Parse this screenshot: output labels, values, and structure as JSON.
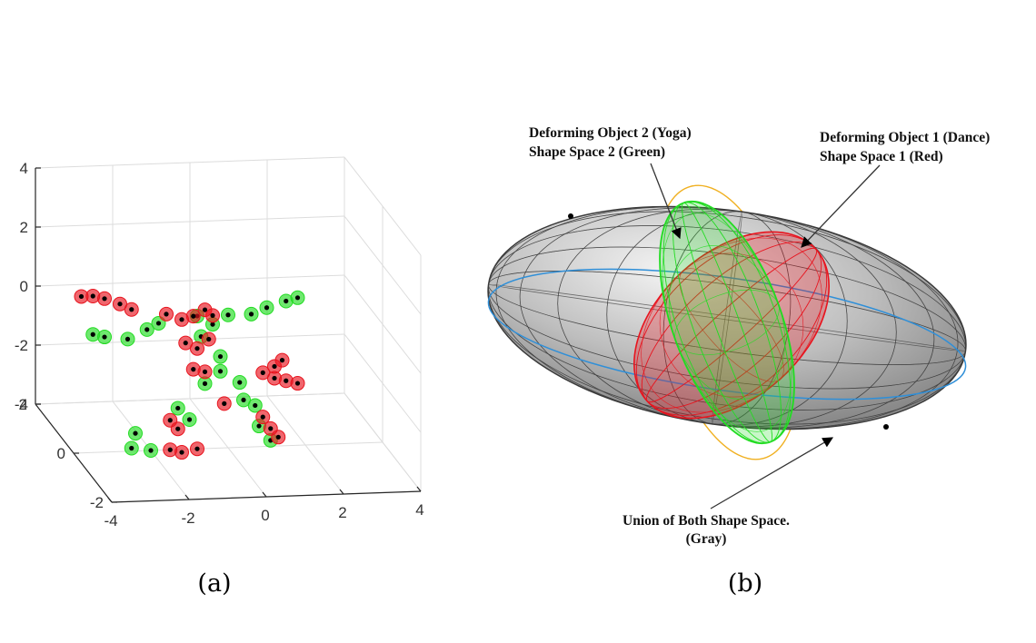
{
  "figure": {
    "captions": [
      "(a)",
      "(b)"
    ]
  },
  "chart_data": [
    {
      "type": "scatter",
      "panel": "(a)",
      "projection": "3d",
      "grid": true,
      "title": "",
      "xlabel": "",
      "ylabel": "",
      "zlabel": "",
      "xlim": [
        -4,
        4
      ],
      "ylim": [
        -2,
        2
      ],
      "zlim": [
        -4,
        4
      ],
      "x_ticks": [
        "-4",
        "-2",
        "0",
        "2",
        "4"
      ],
      "y_ticks": [
        "-2",
        "0",
        "2"
      ],
      "z_ticks": [
        "-4",
        "-2",
        "0",
        "2",
        "4"
      ],
      "colors": {
        "red": "#e8141e",
        "green": "#22dc22",
        "marker_center": "#000000"
      },
      "series": [
        {
          "color": "red",
          "points": [
            [
              -3.8,
              0,
              1.3
            ],
            [
              -3.5,
              0,
              1.3
            ],
            [
              -3.2,
              0,
              1.2
            ],
            [
              -2.8,
              0,
              1.0
            ],
            [
              -2.5,
              0,
              0.8
            ],
            [
              -1.6,
              0,
              0.6
            ],
            [
              -1.2,
              0,
              0.4
            ],
            [
              -0.9,
              0,
              0.5
            ],
            [
              -0.6,
              0,
              0.7
            ],
            [
              -0.4,
              0,
              0.5
            ],
            [
              -1.1,
              0,
              -0.4
            ],
            [
              -0.8,
              0,
              -0.6
            ],
            [
              -0.5,
              0,
              -0.3
            ],
            [
              -0.9,
              0,
              -1.3
            ],
            [
              -0.6,
              0,
              -1.4
            ],
            [
              -0.1,
              0,
              -2.5
            ],
            [
              0.9,
              0,
              -1.5
            ],
            [
              1.2,
              0,
              -1.3
            ],
            [
              1.4,
              0,
              -1.1
            ],
            [
              1.2,
              0,
              -1.7
            ],
            [
              1.5,
              0,
              -1.8
            ],
            [
              1.8,
              0,
              -1.9
            ],
            [
              0.9,
              0,
              -3.0
            ],
            [
              1.1,
              0,
              -3.4
            ],
            [
              1.3,
              0,
              -3.7
            ],
            [
              -1.5,
              0,
              -3.0
            ],
            [
              -1.3,
              0,
              -3.3
            ],
            [
              -1.5,
              0,
              -4.0
            ],
            [
              -1.2,
              0,
              -4.1
            ],
            [
              -0.8,
              0,
              -4.0
            ]
          ]
        },
        {
          "color": "green",
          "points": [
            [
              -3.5,
              0,
              0.0
            ],
            [
              -3.2,
              0,
              -0.1
            ],
            [
              -2.6,
              0,
              -0.2
            ],
            [
              -2.1,
              0,
              0.1
            ],
            [
              -1.8,
              0,
              0.3
            ],
            [
              -0.8,
              0,
              0.5
            ],
            [
              -0.4,
              0,
              0.2
            ],
            [
              0.0,
              0,
              0.5
            ],
            [
              0.6,
              0,
              0.5
            ],
            [
              1.0,
              0,
              0.7
            ],
            [
              1.5,
              0,
              0.9
            ],
            [
              1.8,
              0,
              1.0
            ],
            [
              -0.7,
              0,
              -0.2
            ],
            [
              -0.2,
              0,
              -0.9
            ],
            [
              -0.6,
              0,
              -1.8
            ],
            [
              -0.2,
              0,
              -1.4
            ],
            [
              0.3,
              0,
              -1.8
            ],
            [
              0.4,
              0,
              -2.4
            ],
            [
              0.7,
              0,
              -2.6
            ],
            [
              0.8,
              0,
              -3.3
            ],
            [
              1.1,
              0,
              -3.8
            ],
            [
              -1.3,
              0,
              -2.6
            ],
            [
              -1.0,
              0,
              -3.0
            ],
            [
              -2.4,
              0,
              -3.4
            ],
            [
              -2.5,
              0,
              -3.9
            ],
            [
              -2.0,
              0,
              -4.0
            ]
          ]
        }
      ]
    },
    {
      "type": "diagram",
      "panel": "(b)",
      "annotations": [
        "Deforming Object 2 (Yoga)",
        "Shape Space 2 (Green)",
        "Deforming Object 1 (Dance)",
        "Shape Space 1 (Red)",
        "Union of Both Shape Space.",
        "(Gray)"
      ],
      "colors": {
        "union": "#9a9a9a",
        "shape_space_1": "#e8141e",
        "shape_space_2": "#22dc22",
        "outline_blue": "#2f8fd8",
        "outline_orange": "#f08040",
        "outline_yellow": "#f0b020"
      }
    }
  ]
}
